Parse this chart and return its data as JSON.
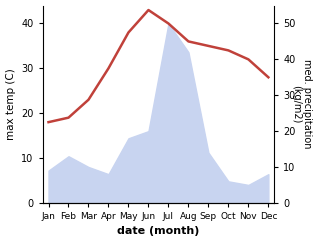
{
  "months": [
    "Jan",
    "Feb",
    "Mar",
    "Apr",
    "May",
    "Jun",
    "Jul",
    "Aug",
    "Sep",
    "Oct",
    "Nov",
    "Dec"
  ],
  "month_positions": [
    1,
    2,
    3,
    4,
    5,
    6,
    7,
    8,
    9,
    10,
    11,
    12
  ],
  "temperature": [
    18,
    19,
    23,
    30,
    38,
    43,
    40,
    36,
    35,
    34,
    32,
    28
  ],
  "precipitation": [
    9,
    13,
    10,
    8,
    18,
    20,
    50,
    42,
    14,
    6,
    5,
    8
  ],
  "temp_color": "#c0413a",
  "precip_fill_color": "#c8d4f0",
  "precip_edge_color": "#b0c0e8",
  "temp_ylim": [
    0,
    44
  ],
  "precip_ylim": [
    0,
    55
  ],
  "temp_yticks": [
    0,
    10,
    20,
    30,
    40
  ],
  "precip_yticks": [
    0,
    10,
    20,
    30,
    40,
    50
  ],
  "xlabel": "date (month)",
  "ylabel_left": "max temp (C)",
  "ylabel_right": "med. precipitation\n(kg/m2)",
  "background_color": "#ffffff"
}
